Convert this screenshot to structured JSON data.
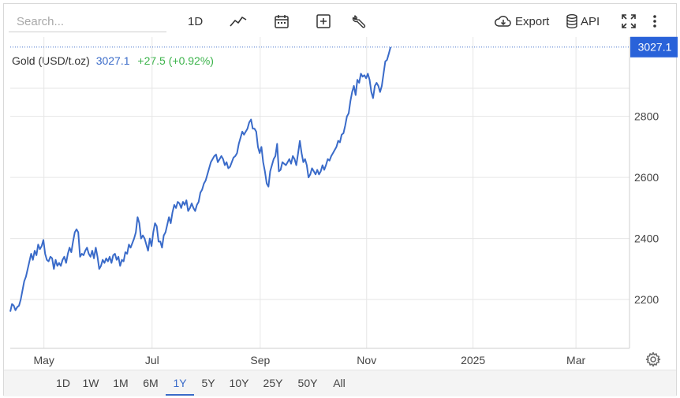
{
  "toolbar": {
    "search_placeholder": "Search...",
    "interval_label": "1D",
    "export_label": "Export",
    "api_label": "API",
    "icons": [
      "line-chart-icon",
      "calendar-icon",
      "add-box-icon",
      "wrench-icon",
      "cloud-download-icon",
      "database-icon",
      "fullscreen-icon",
      "more-vertical-icon"
    ]
  },
  "quote": {
    "name": "Gold (USD/t.oz)",
    "price": "3027.1",
    "change": "+27.5 (+0.92%)"
  },
  "price_tag": "3027.1",
  "colors": {
    "line": "#3a6bc9",
    "price_tag_bg": "#2962d9",
    "up": "#3bb34a",
    "grid": "#e6e6e6"
  },
  "chart_data": {
    "type": "line",
    "title": "",
    "xlabel": "",
    "ylabel": "",
    "ylim": [
      2040,
      3060
    ],
    "y_ticks": [
      "2200",
      "2400",
      "2600",
      "2800"
    ],
    "x_ticks": [
      {
        "label": "May",
        "x": 19.3
      },
      {
        "label": "Jul",
        "x": 81.3
      },
      {
        "label": "Sep",
        "x": 143.3
      },
      {
        "label": "Nov",
        "x": 204.3
      },
      {
        "label": "2025",
        "x": 265.3
      },
      {
        "label": "Mar",
        "x": 324.3
      }
    ],
    "xlim": [
      0,
      355
    ],
    "series": [
      {
        "values": [
          [
            0,
            2160
          ],
          [
            1,
            2185
          ],
          [
            2,
            2180
          ],
          [
            3,
            2165
          ],
          [
            4,
            2175
          ],
          [
            5,
            2180
          ],
          [
            6,
            2200
          ],
          [
            7,
            2230
          ],
          [
            8,
            2260
          ],
          [
            9,
            2275
          ],
          [
            10,
            2300
          ],
          [
            11,
            2325
          ],
          [
            12,
            2350
          ],
          [
            13,
            2330
          ],
          [
            14,
            2360
          ],
          [
            15,
            2345
          ],
          [
            16,
            2380
          ],
          [
            17,
            2365
          ],
          [
            18,
            2375
          ],
          [
            19,
            2395
          ],
          [
            20,
            2350
          ],
          [
            21,
            2330
          ],
          [
            22,
            2325
          ],
          [
            23,
            2340
          ],
          [
            24,
            2335
          ],
          [
            25,
            2300
          ],
          [
            26,
            2330
          ],
          [
            27,
            2310
          ],
          [
            28,
            2320
          ],
          [
            29,
            2310
          ],
          [
            30,
            2330
          ],
          [
            31,
            2340
          ],
          [
            32,
            2320
          ],
          [
            33,
            2350
          ],
          [
            34,
            2370
          ],
          [
            35,
            2355
          ],
          [
            36,
            2390
          ],
          [
            37,
            2420
          ],
          [
            38,
            2430
          ],
          [
            39,
            2420
          ],
          [
            40,
            2340
          ],
          [
            41,
            2350
          ],
          [
            42,
            2345
          ],
          [
            43,
            2360
          ],
          [
            44,
            2370
          ],
          [
            45,
            2350
          ],
          [
            46,
            2340
          ],
          [
            47,
            2360
          ],
          [
            48,
            2335
          ],
          [
            49,
            2370
          ],
          [
            50,
            2340
          ],
          [
            51,
            2300
          ],
          [
            52,
            2310
          ],
          [
            53,
            2330
          ],
          [
            54,
            2320
          ],
          [
            55,
            2335
          ],
          [
            56,
            2325
          ],
          [
            57,
            2340
          ],
          [
            58,
            2320
          ],
          [
            59,
            2345
          ],
          [
            60,
            2350
          ],
          [
            61,
            2330
          ],
          [
            62,
            2340
          ],
          [
            63,
            2310
          ],
          [
            64,
            2330
          ],
          [
            65,
            2325
          ],
          [
            66,
            2355
          ],
          [
            67,
            2350
          ],
          [
            68,
            2380
          ],
          [
            69,
            2370
          ],
          [
            70,
            2385
          ],
          [
            71,
            2400
          ],
          [
            72,
            2420
          ],
          [
            73,
            2470
          ],
          [
            74,
            2450
          ],
          [
            75,
            2400
          ],
          [
            76,
            2410
          ],
          [
            77,
            2400
          ],
          [
            78,
            2380
          ],
          [
            79,
            2360
          ],
          [
            80,
            2400
          ],
          [
            81,
            2375
          ],
          [
            82,
            2420
          ],
          [
            83,
            2450
          ],
          [
            84,
            2440
          ],
          [
            85,
            2390
          ],
          [
            86,
            2390
          ],
          [
            87,
            2370
          ],
          [
            88,
            2410
          ],
          [
            89,
            2420
          ],
          [
            90,
            2445
          ],
          [
            91,
            2470
          ],
          [
            92,
            2450
          ],
          [
            93,
            2485
          ],
          [
            94,
            2510
          ],
          [
            95,
            2500
          ],
          [
            96,
            2520
          ],
          [
            97,
            2515
          ],
          [
            98,
            2500
          ],
          [
            99,
            2520
          ],
          [
            100,
            2510
          ],
          [
            101,
            2525
          ],
          [
            102,
            2490
          ],
          [
            103,
            2500
          ],
          [
            104,
            2515
          ],
          [
            105,
            2500
          ],
          [
            106,
            2490
          ],
          [
            107,
            2510
          ],
          [
            108,
            2520
          ],
          [
            109,
            2550
          ],
          [
            110,
            2560
          ],
          [
            111,
            2580
          ],
          [
            112,
            2590
          ],
          [
            113,
            2610
          ],
          [
            114,
            2630
          ],
          [
            115,
            2650
          ],
          [
            116,
            2660
          ],
          [
            117,
            2670
          ],
          [
            118,
            2675
          ],
          [
            119,
            2650
          ],
          [
            120,
            2660
          ],
          [
            121,
            2670
          ],
          [
            122,
            2660
          ],
          [
            123,
            2640
          ],
          [
            124,
            2650
          ],
          [
            125,
            2630
          ],
          [
            126,
            2635
          ],
          [
            127,
            2650
          ],
          [
            128,
            2665
          ],
          [
            129,
            2670
          ],
          [
            130,
            2680
          ],
          [
            131,
            2710
          ],
          [
            132,
            2730
          ],
          [
            133,
            2750
          ],
          [
            134,
            2740
          ],
          [
            135,
            2750
          ],
          [
            136,
            2760
          ],
          [
            137,
            2780
          ],
          [
            138,
            2790
          ],
          [
            139,
            2760
          ],
          [
            140,
            2760
          ],
          [
            141,
            2750
          ],
          [
            142,
            2700
          ],
          [
            143,
            2680
          ],
          [
            144,
            2700
          ],
          [
            145,
            2650
          ],
          [
            146,
            2620
          ],
          [
            147,
            2580
          ],
          [
            148,
            2570
          ],
          [
            149,
            2620
          ],
          [
            150,
            2640
          ],
          [
            151,
            2660
          ],
          [
            152,
            2670
          ],
          [
            153,
            2710
          ],
          [
            154,
            2620
          ],
          [
            155,
            2625
          ],
          [
            156,
            2650
          ],
          [
            157,
            2645
          ],
          [
            158,
            2640
          ],
          [
            159,
            2650
          ],
          [
            160,
            2660
          ],
          [
            161,
            2645
          ],
          [
            162,
            2670
          ],
          [
            163,
            2660
          ],
          [
            164,
            2640
          ],
          [
            165,
            2680
          ],
          [
            166,
            2720
          ],
          [
            167,
            2680
          ],
          [
            168,
            2650
          ],
          [
            169,
            2660
          ],
          [
            170,
            2640
          ],
          [
            171,
            2600
          ],
          [
            172,
            2610
          ],
          [
            173,
            2630
          ],
          [
            174,
            2620
          ],
          [
            175,
            2610
          ],
          [
            176,
            2625
          ],
          [
            177,
            2610
          ],
          [
            178,
            2620
          ],
          [
            179,
            2640
          ],
          [
            180,
            2625
          ],
          [
            181,
            2640
          ],
          [
            182,
            2660
          ],
          [
            183,
            2655
          ],
          [
            184,
            2670
          ],
          [
            185,
            2680
          ],
          [
            186,
            2690
          ],
          [
            187,
            2700
          ],
          [
            188,
            2720
          ],
          [
            189,
            2715
          ],
          [
            190,
            2740
          ],
          [
            191,
            2745
          ],
          [
            192,
            2770
          ],
          [
            193,
            2800
          ],
          [
            194,
            2810
          ],
          [
            195,
            2850
          ],
          [
            196,
            2880
          ],
          [
            197,
            2900
          ],
          [
            198,
            2870
          ],
          [
            199,
            2920
          ],
          [
            200,
            2910
          ],
          [
            201,
            2940
          ],
          [
            202,
            2930
          ],
          [
            203,
            2935
          ],
          [
            204,
            2925
          ],
          [
            205,
            2940
          ],
          [
            206,
            2920
          ],
          [
            207,
            2880
          ],
          [
            208,
            2860
          ],
          [
            209,
            2900
          ],
          [
            210,
            2910
          ],
          [
            211,
            2900
          ],
          [
            212,
            2880
          ],
          [
            213,
            2900
          ],
          [
            214,
            2940
          ],
          [
            215,
            2980
          ],
          [
            216,
            2985
          ],
          [
            217,
            3005
          ],
          [
            218,
            3027.1
          ]
        ]
      }
    ]
  },
  "ranges": [
    "1D",
    "1W",
    "1M",
    "6M",
    "1Y",
    "5Y",
    "10Y",
    "25Y",
    "50Y",
    "All"
  ],
  "active_range": "1Y"
}
